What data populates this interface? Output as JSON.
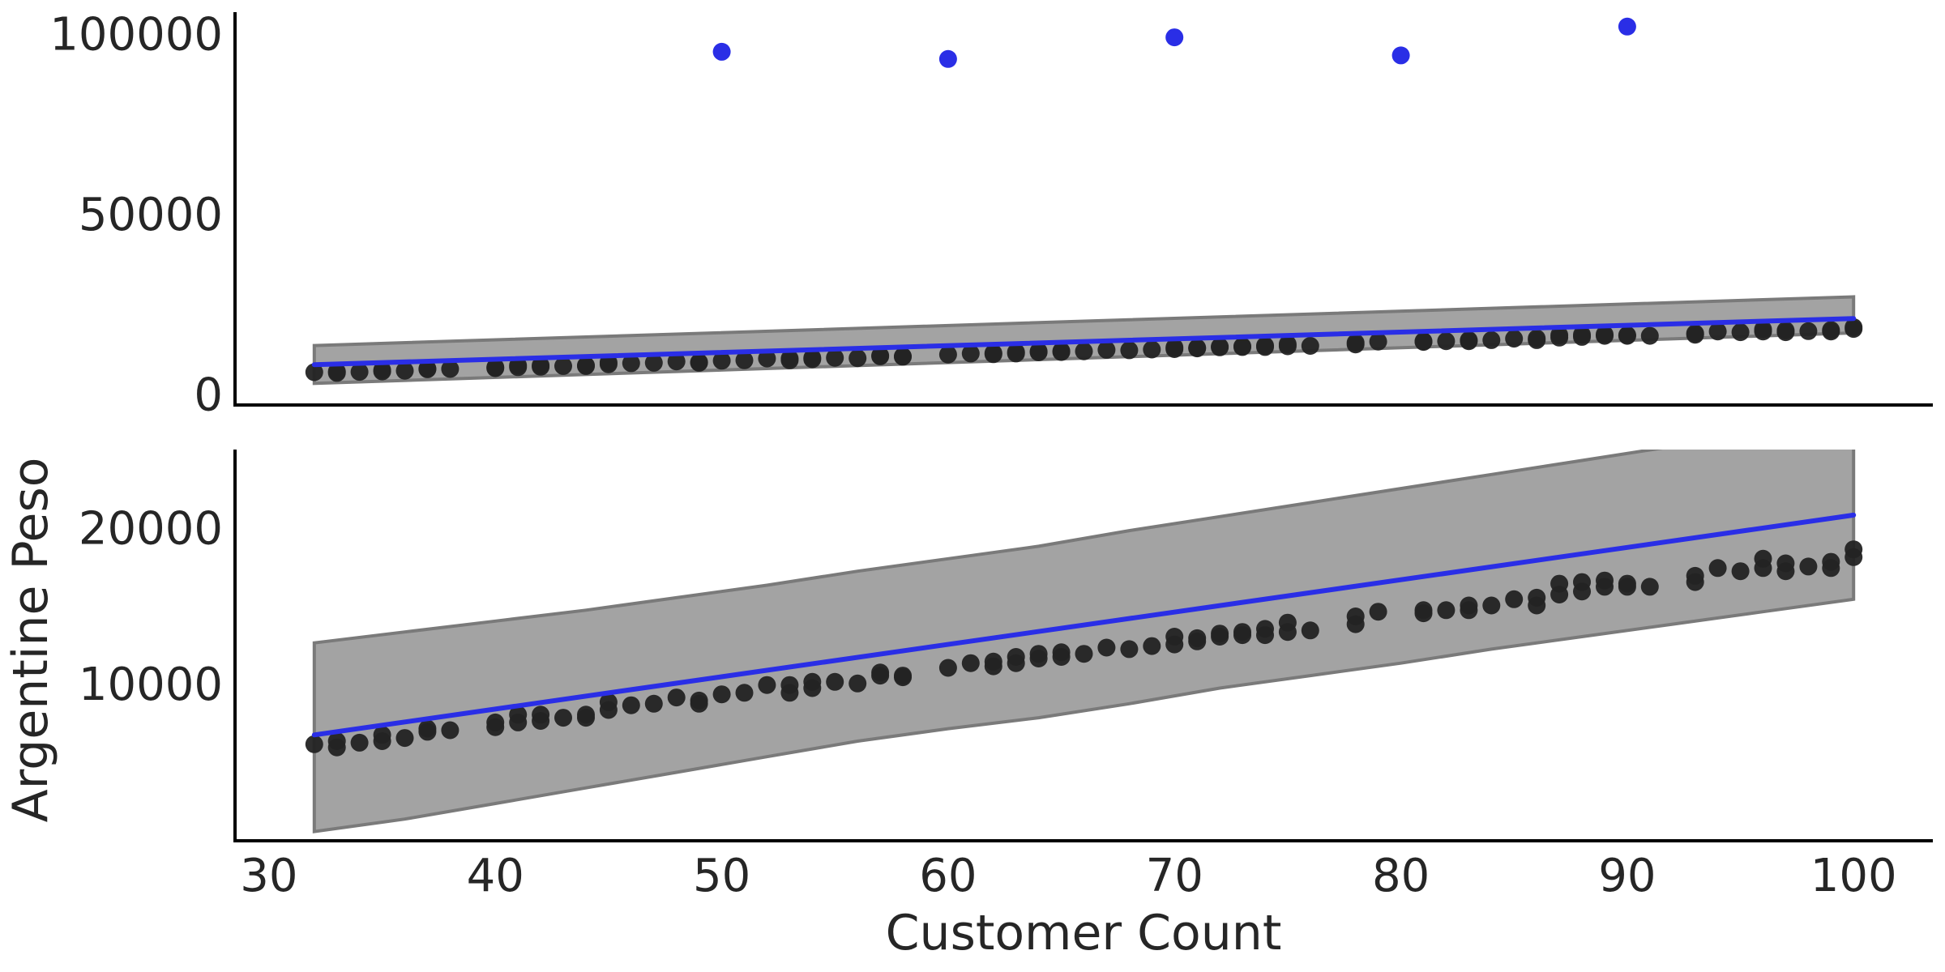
{
  "chart_data": {
    "type": "scatter",
    "shared_x": true,
    "xlabel": "Customer Count",
    "ylabel": "Argentine Peso",
    "x_ticks": [
      30,
      40,
      50,
      60,
      70,
      80,
      90,
      100
    ],
    "x_tick_labels": [
      "30",
      "40",
      "50",
      "60",
      "70",
      "80",
      "90",
      "100"
    ],
    "xlim": [
      28.5,
      103.5
    ],
    "colors": {
      "observed_points": "#232323",
      "outlier_points": "#2a2ee6",
      "fit_line": "#2a2ee6",
      "interval_fill": "#a3a3a3",
      "interval_edge": "#7a7a7a",
      "axis": "#000000"
    },
    "panels": [
      {
        "name": "with outliers",
        "ylim": [
          -3000,
          106000
        ],
        "y_ticks": [
          0,
          50000,
          100000
        ],
        "y_tick_labels": [
          "0",
          "50000",
          "100000"
        ],
        "fit_line": {
          "x": [
            32,
            100
          ],
          "y": [
            8200,
            21000
          ]
        },
        "interval": {
          "x": [
            32,
            100
          ],
          "upper": [
            13500,
            27000
          ],
          "lower": [
            3000,
            17000
          ]
        },
        "outliers": {
          "x": [
            50,
            60,
            70,
            80,
            90
          ],
          "y": [
            95000,
            93000,
            99000,
            94000,
            102000
          ]
        },
        "x_hidden": true
      },
      {
        "name": "zoomed",
        "ylim": [
          -90,
          25000
        ],
        "y_ticks": [
          10000,
          20000
        ],
        "y_tick_labels": [
          "10000",
          "20000"
        ],
        "fit_line": {
          "x": [
            32,
            100
          ],
          "y": [
            6700,
            20800
          ]
        },
        "interval": {
          "x": [
            32,
            36,
            40,
            44,
            48,
            52,
            56,
            60,
            64,
            68,
            72,
            76,
            80,
            84,
            88,
            92,
            96,
            100
          ],
          "upper": [
            12600,
            13300,
            14000,
            14700,
            15500,
            16300,
            17200,
            18000,
            18800,
            19800,
            20700,
            21600,
            22500,
            23400,
            24300,
            25200,
            26100,
            27000
          ],
          "lower": [
            500,
            1300,
            2300,
            3300,
            4300,
            5300,
            6300,
            7100,
            7800,
            8700,
            9700,
            10500,
            11300,
            12200,
            13000,
            13800,
            14600,
            15400
          ]
        },
        "x_hidden": false
      }
    ],
    "observed": {
      "x": [
        32,
        33,
        33,
        34,
        35,
        35,
        36,
        37,
        37,
        38,
        40,
        40,
        41,
        41,
        42,
        42,
        43,
        44,
        44,
        45,
        45,
        46,
        47,
        48,
        49,
        49,
        50,
        51,
        52,
        53,
        53,
        54,
        54,
        55,
        56,
        57,
        57,
        58,
        58,
        60,
        61,
        62,
        62,
        63,
        63,
        64,
        64,
        65,
        65,
        66,
        67,
        68,
        69,
        70,
        70,
        71,
        71,
        72,
        72,
        73,
        73,
        74,
        74,
        75,
        75,
        76,
        78,
        78,
        79,
        81,
        81,
        82,
        83,
        83,
        84,
        85,
        86,
        86,
        87,
        87,
        88,
        88,
        89,
        89,
        90,
        90,
        91,
        93,
        93,
        94,
        95,
        96,
        96,
        97,
        97,
        98,
        99,
        99,
        100,
        100
      ],
      "y": [
        6100,
        5900,
        6300,
        6200,
        6300,
        6700,
        6500,
        7100,
        6900,
        7000,
        7200,
        7500,
        7500,
        8000,
        7600,
        8000,
        7800,
        8000,
        7800,
        8300,
        8800,
        8600,
        8700,
        9100,
        8900,
        8700,
        9300,
        9400,
        9900,
        9400,
        9900,
        9700,
        10100,
        10100,
        10000,
        10500,
        10700,
        10400,
        10500,
        11000,
        11300,
        11100,
        11400,
        11300,
        11700,
        11600,
        11900,
        11700,
        12000,
        11900,
        12300,
        12200,
        12400,
        12500,
        13000,
        12700,
        12900,
        13200,
        13000,
        13300,
        13100,
        13500,
        13100,
        13900,
        13300,
        13400,
        13800,
        14300,
        14600,
        14700,
        14500,
        14700,
        15000,
        14700,
        15000,
        15400,
        15500,
        15000,
        15700,
        16400,
        15900,
        16500,
        16200,
        16600,
        16400,
        16200,
        16200,
        16500,
        16900,
        17400,
        17200,
        17400,
        18000,
        17200,
        17700,
        17500,
        17400,
        17800,
        18100,
        18600
      ]
    }
  }
}
